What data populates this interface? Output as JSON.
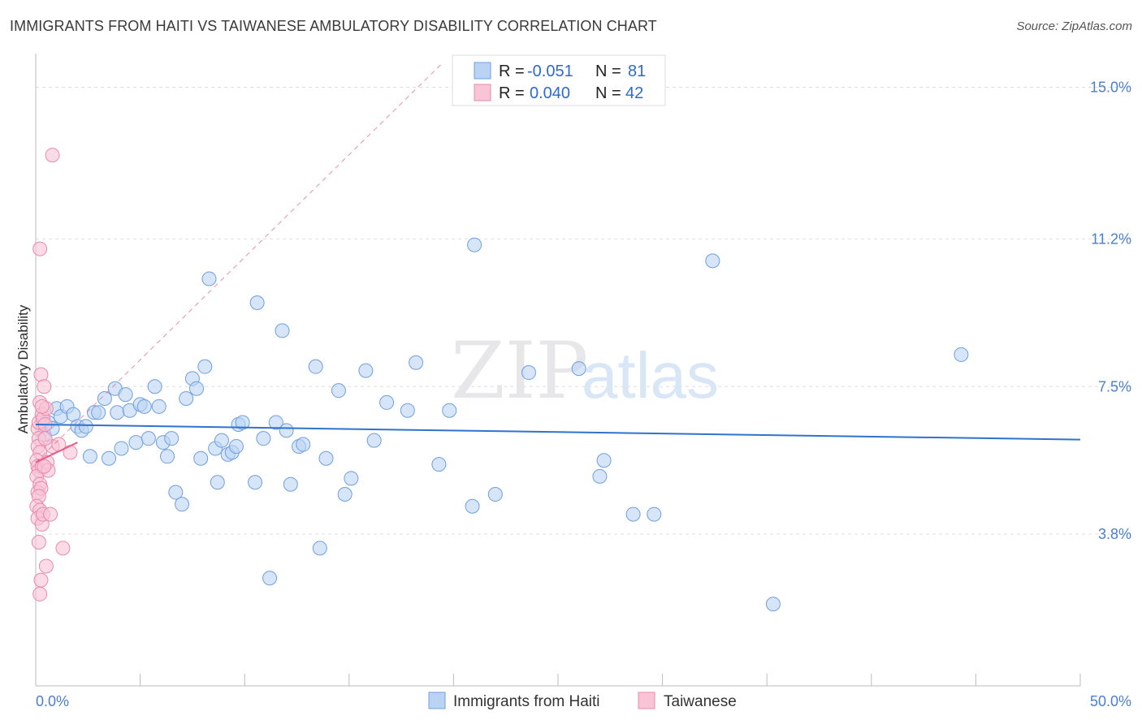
{
  "header": {
    "title": "IMMIGRANTS FROM HAITI VS TAIWANESE AMBULATORY DISABILITY CORRELATION CHART",
    "source": "Source: ZipAtlas.com"
  },
  "watermark": {
    "zip": "ZIP",
    "atlas": "atlas"
  },
  "legend_top": {
    "rows": [
      {
        "r_label": "R =",
        "r_value": "-0.051",
        "n_label": "N =",
        "n_value": "81"
      },
      {
        "r_label": "R =",
        "r_value": "0.040",
        "n_label": "N =",
        "n_value": "42"
      }
    ]
  },
  "legend_bottom": {
    "series1": "Immigrants from Haiti",
    "series2": "Taiwanese"
  },
  "colors": {
    "haiti_fill": "#bad3f3",
    "haiti_stroke": "#6f9fe0",
    "haiti_line": "#2f73cc",
    "taiwan_fill": "#f9c4d5",
    "taiwan_stroke": "#ea8aaa",
    "taiwan_line": "#e45e8c",
    "axis_text": "#4a7fd0",
    "grid": "#dddddd"
  },
  "chart_data": {
    "type": "scatter",
    "title": "IMMIGRANTS FROM HAITI VS TAIWANESE AMBULATORY DISABILITY CORRELATION CHART",
    "xlabel": "",
    "ylabel": "Ambulatory Disability",
    "xlim": [
      0,
      50
    ],
    "ylim": [
      0,
      15.6
    ],
    "x_tick_labels": [
      "0.0%",
      "50.0%"
    ],
    "y_ticks": [
      3.8,
      7.5,
      11.2,
      15.0
    ],
    "y_tick_labels": [
      "3.8%",
      "7.5%",
      "11.2%",
      "15.0%"
    ],
    "grid": true,
    "series": [
      {
        "name": "Immigrants from Haiti",
        "R": -0.051,
        "N": 81,
        "trend": {
          "x": [
            0,
            50
          ],
          "y": [
            6.55,
            6.17
          ]
        },
        "points": [
          [
            0.3,
            6.6
          ],
          [
            0.4,
            6.3
          ],
          [
            0.6,
            6.6
          ],
          [
            0.8,
            6.45
          ],
          [
            1.0,
            6.95
          ],
          [
            1.2,
            6.75
          ],
          [
            1.5,
            7.0
          ],
          [
            1.8,
            6.8
          ],
          [
            2.0,
            6.5
          ],
          [
            2.2,
            6.4
          ],
          [
            2.4,
            6.5
          ],
          [
            2.6,
            5.75
          ],
          [
            2.8,
            6.85
          ],
          [
            3.0,
            6.85
          ],
          [
            3.3,
            7.2
          ],
          [
            3.5,
            5.7
          ],
          [
            3.8,
            7.45
          ],
          [
            3.9,
            6.85
          ],
          [
            4.1,
            5.95
          ],
          [
            4.3,
            7.3
          ],
          [
            4.5,
            6.9
          ],
          [
            4.8,
            6.1
          ],
          [
            5.0,
            7.05
          ],
          [
            5.2,
            7.0
          ],
          [
            5.4,
            6.2
          ],
          [
            5.7,
            7.5
          ],
          [
            5.9,
            7.0
          ],
          [
            6.1,
            6.1
          ],
          [
            6.3,
            5.75
          ],
          [
            6.5,
            6.2
          ],
          [
            6.7,
            4.85
          ],
          [
            7.0,
            4.55
          ],
          [
            7.2,
            7.2
          ],
          [
            7.5,
            7.7
          ],
          [
            7.7,
            7.45
          ],
          [
            7.9,
            5.7
          ],
          [
            8.1,
            8.0
          ],
          [
            8.3,
            10.2
          ],
          [
            8.6,
            5.95
          ],
          [
            8.7,
            5.1
          ],
          [
            8.9,
            6.15
          ],
          [
            9.2,
            5.8
          ],
          [
            9.4,
            5.85
          ],
          [
            9.6,
            6.0
          ],
          [
            9.7,
            6.55
          ],
          [
            9.9,
            6.6
          ],
          [
            10.5,
            5.1
          ],
          [
            10.6,
            9.6
          ],
          [
            10.9,
            6.2
          ],
          [
            11.2,
            2.7
          ],
          [
            11.5,
            6.6
          ],
          [
            11.8,
            8.9
          ],
          [
            12.0,
            6.4
          ],
          [
            12.2,
            5.05
          ],
          [
            12.6,
            6.0
          ],
          [
            12.8,
            6.05
          ],
          [
            13.4,
            8.0
          ],
          [
            13.6,
            3.45
          ],
          [
            13.9,
            5.7
          ],
          [
            14.5,
            7.4
          ],
          [
            14.8,
            4.8
          ],
          [
            15.1,
            5.2
          ],
          [
            15.8,
            7.9
          ],
          [
            16.2,
            6.15
          ],
          [
            16.8,
            7.1
          ],
          [
            17.8,
            6.9
          ],
          [
            18.2,
            8.1
          ],
          [
            19.3,
            5.55
          ],
          [
            19.8,
            6.9
          ],
          [
            20.9,
            4.5
          ],
          [
            21.0,
            11.05
          ],
          [
            22.0,
            4.8
          ],
          [
            23.6,
            7.85
          ],
          [
            26.0,
            7.95
          ],
          [
            27.0,
            5.25
          ],
          [
            27.2,
            5.65
          ],
          [
            28.6,
            4.3
          ],
          [
            29.6,
            4.3
          ],
          [
            32.4,
            10.65
          ],
          [
            35.3,
            2.05
          ],
          [
            44.3,
            8.3
          ]
        ]
      },
      {
        "name": "Taiwanese",
        "R": 0.04,
        "N": 42,
        "trend": {
          "x": [
            0,
            2.0
          ],
          "y": [
            5.6,
            6.1
          ]
        },
        "extrapolation": {
          "x": [
            0,
            50
          ],
          "y": [
            5.6,
            31.3
          ]
        },
        "points": [
          [
            0.1,
            6.45
          ],
          [
            0.15,
            6.6
          ],
          [
            0.2,
            7.1
          ],
          [
            0.25,
            7.8
          ],
          [
            0.3,
            6.8
          ],
          [
            0.15,
            6.2
          ],
          [
            0.1,
            6.0
          ],
          [
            0.2,
            5.85
          ],
          [
            0.05,
            5.65
          ],
          [
            0.1,
            5.5
          ],
          [
            0.15,
            5.4
          ],
          [
            0.3,
            5.5
          ],
          [
            0.05,
            5.25
          ],
          [
            0.2,
            5.05
          ],
          [
            0.1,
            4.85
          ],
          [
            0.25,
            4.95
          ],
          [
            0.15,
            4.75
          ],
          [
            0.05,
            4.5
          ],
          [
            0.2,
            4.4
          ],
          [
            0.1,
            4.2
          ],
          [
            0.3,
            4.05
          ],
          [
            0.15,
            3.6
          ],
          [
            0.25,
            2.65
          ],
          [
            0.2,
            2.3
          ],
          [
            0.35,
            6.7
          ],
          [
            0.45,
            6.55
          ],
          [
            0.4,
            7.5
          ],
          [
            0.5,
            6.95
          ],
          [
            0.55,
            5.6
          ],
          [
            0.6,
            5.4
          ],
          [
            0.4,
            5.5
          ],
          [
            0.35,
            4.3
          ],
          [
            0.5,
            3.0
          ],
          [
            0.7,
            4.3
          ],
          [
            0.8,
            6.0
          ],
          [
            1.1,
            6.05
          ],
          [
            1.3,
            3.45
          ],
          [
            1.65,
            5.85
          ],
          [
            0.8,
            13.3
          ],
          [
            0.2,
            10.95
          ],
          [
            0.45,
            6.2
          ],
          [
            0.3,
            7.0
          ]
        ]
      }
    ]
  }
}
